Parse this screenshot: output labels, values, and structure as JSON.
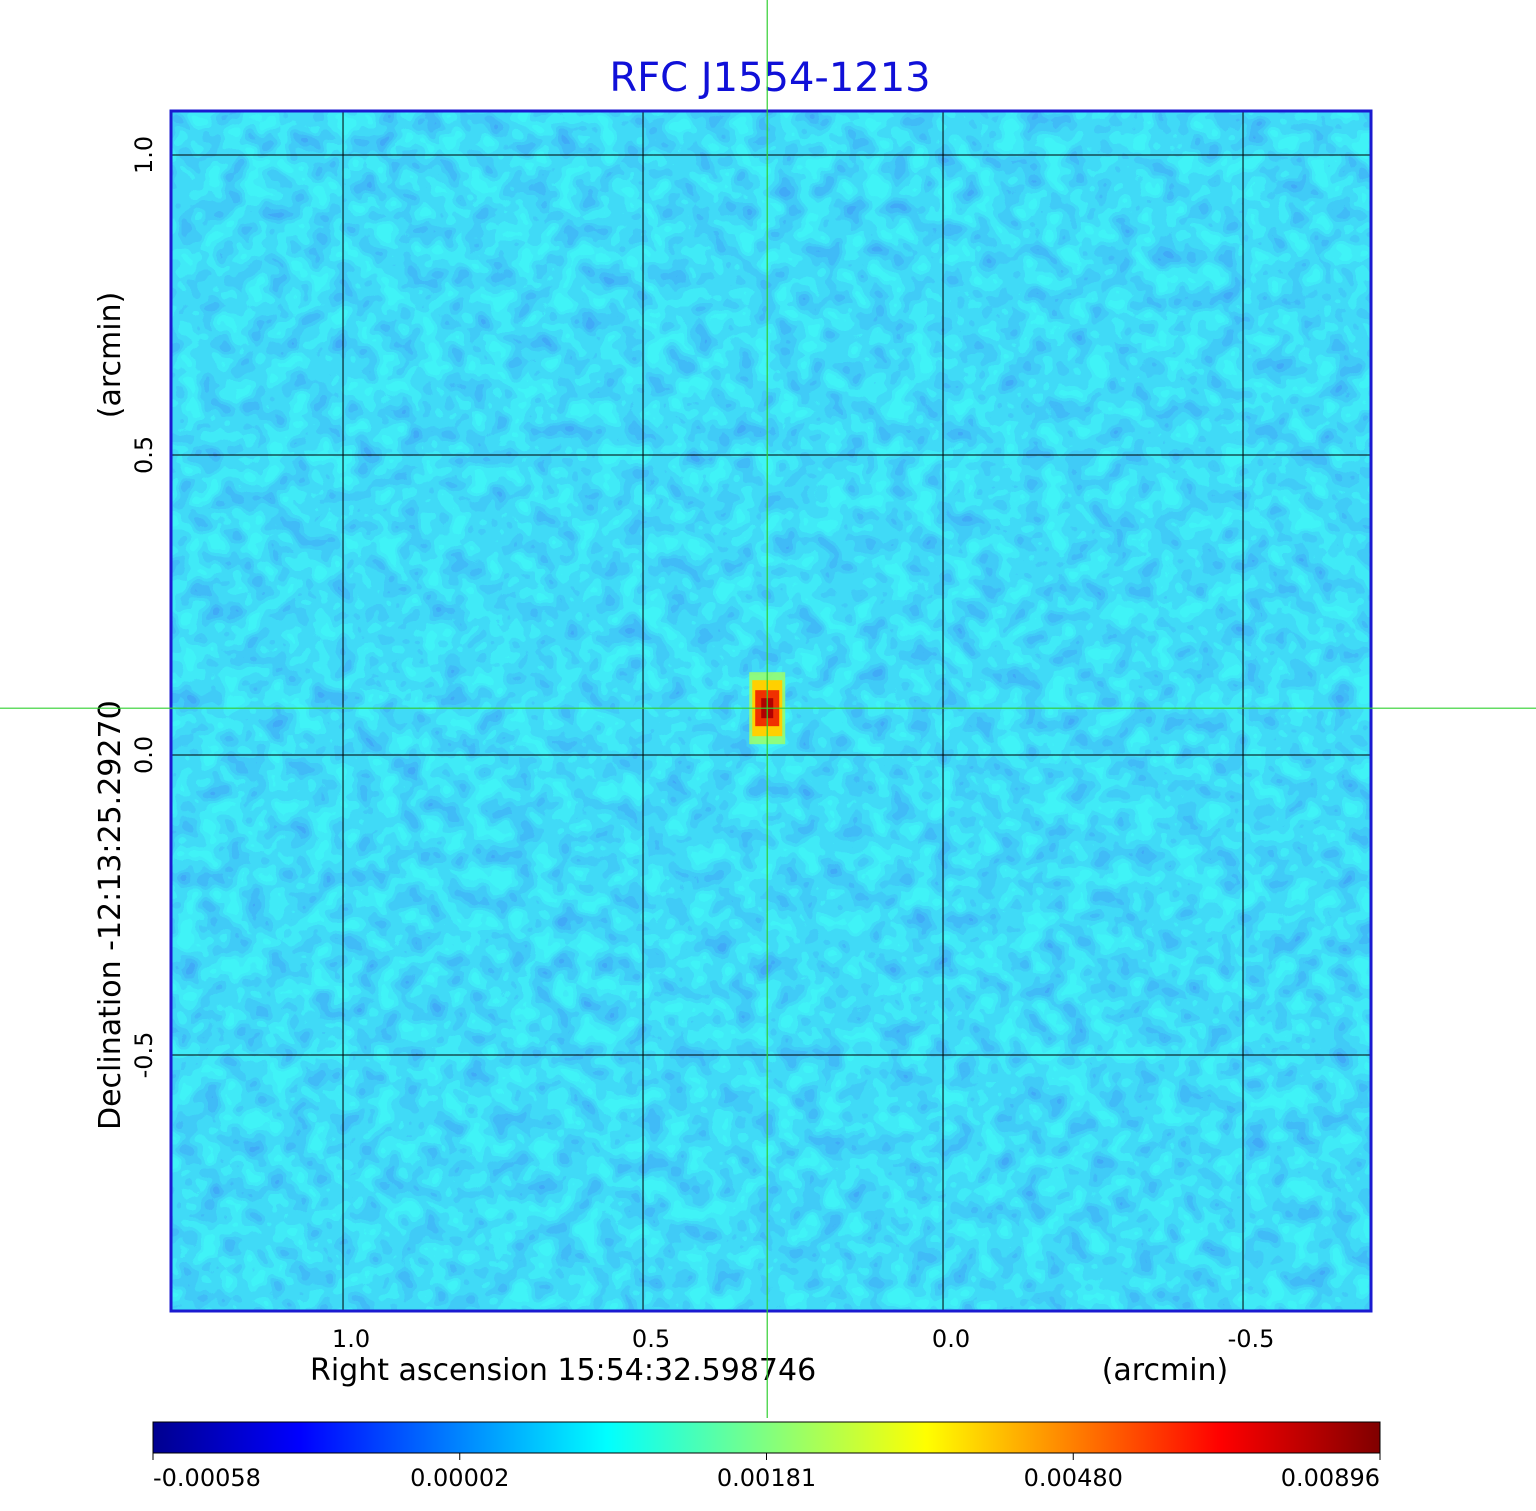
{
  "chart_data": {
    "type": "image",
    "title": "RFC J1554-1213",
    "x_label": "Right ascension  15:54:32.598746",
    "x_unit": "(arcmin)",
    "y_label": "Declination  -12:13:25.29270",
    "y_unit": "(arcmin)",
    "xlim": [
      1.2867,
      -0.7133
    ],
    "ylim": [
      -0.9267,
      1.0733
    ],
    "xticks": [
      {
        "value": 1.0,
        "label": "1.0"
      },
      0.5,
      {
        "value": 0.0,
        "label": "0.0"
      },
      -0.5
    ],
    "yticks": [
      {
        "value": 1.0,
        "label": "1.0"
      },
      0.5,
      {
        "value": 0.0,
        "label": "0.0"
      },
      -0.5
    ],
    "grid": true,
    "source": {
      "x": 0.293,
      "y": 0.078,
      "peak": 0.00896
    },
    "colorbar": {
      "colormap": "jet",
      "ticks": [
        -0.00058,
        2e-05,
        0.00181,
        {
          "value": 0.0048,
          "label": "0.00480"
        },
        0.00896
      ]
    }
  }
}
